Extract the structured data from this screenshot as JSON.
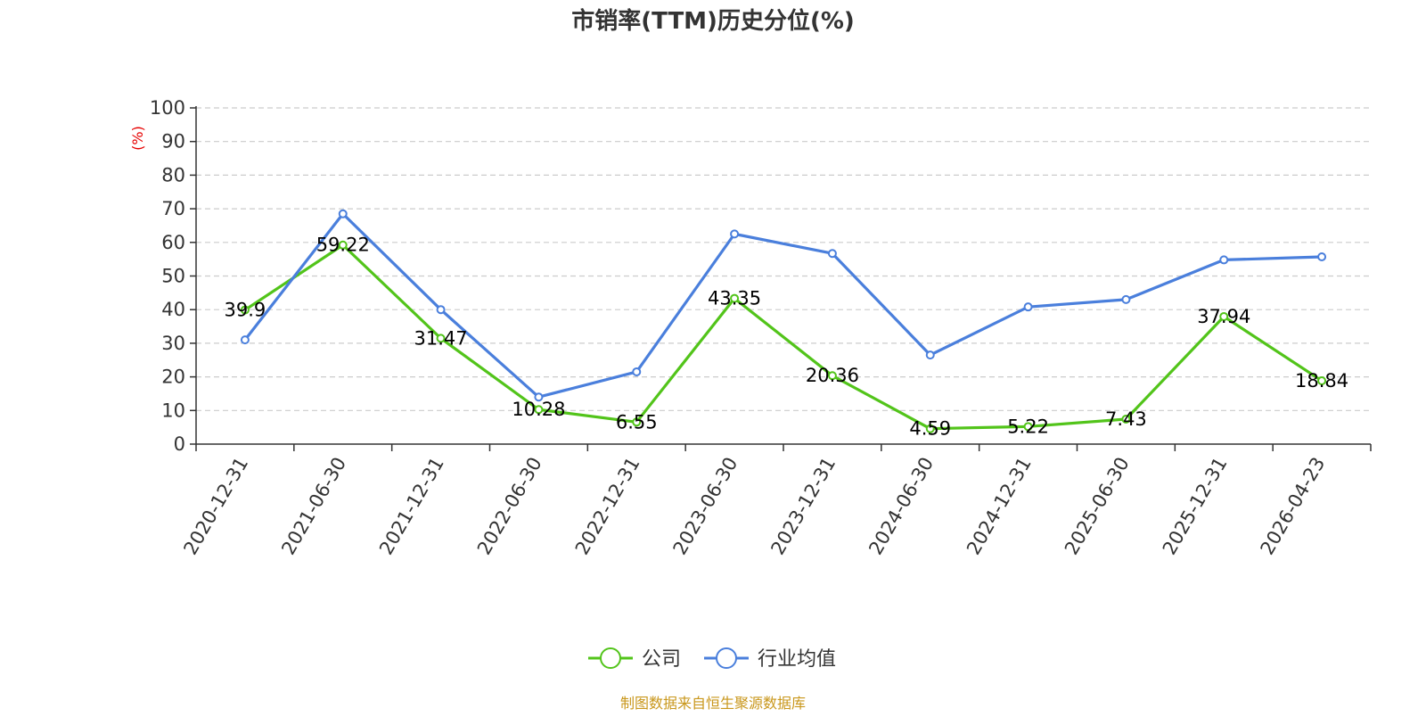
{
  "chart_data": {
    "type": "line",
    "title": "市销率(TTM)历史分位(%)",
    "ylabel": "(%)",
    "ylim": [
      0,
      100
    ],
    "yticks": [
      0,
      10,
      20,
      30,
      40,
      50,
      60,
      70,
      80,
      90,
      100
    ],
    "grid": true,
    "legend_position": "bottom-center",
    "categories": [
      "2020-12-31",
      "2021-06-30",
      "2021-12-31",
      "2022-06-30",
      "2022-12-31",
      "2023-06-30",
      "2023-12-31",
      "2024-06-30",
      "2024-12-31",
      "2025-06-30",
      "2025-12-31",
      "2026-04-23"
    ],
    "series": [
      {
        "name": "公司",
        "color": "#52c41a",
        "values": [
          39.9,
          59.22,
          31.47,
          10.28,
          6.55,
          43.35,
          20.36,
          4.59,
          5.22,
          7.43,
          37.94,
          18.84
        ],
        "labels": [
          "39.9",
          "59.22",
          "31.47",
          "10.28",
          "6.55",
          "43.35",
          "20.36",
          "4.59",
          "5.22",
          "7.43",
          "37.94",
          "18.84"
        ]
      },
      {
        "name": "行业均值",
        "color": "#4a7fdc",
        "values": [
          31,
          68.5,
          40,
          14,
          21.5,
          62.5,
          56.7,
          26.5,
          40.8,
          43,
          54.8,
          55.7
        ]
      }
    ]
  },
  "source_note": "制图数据来自恒生聚源数据库"
}
